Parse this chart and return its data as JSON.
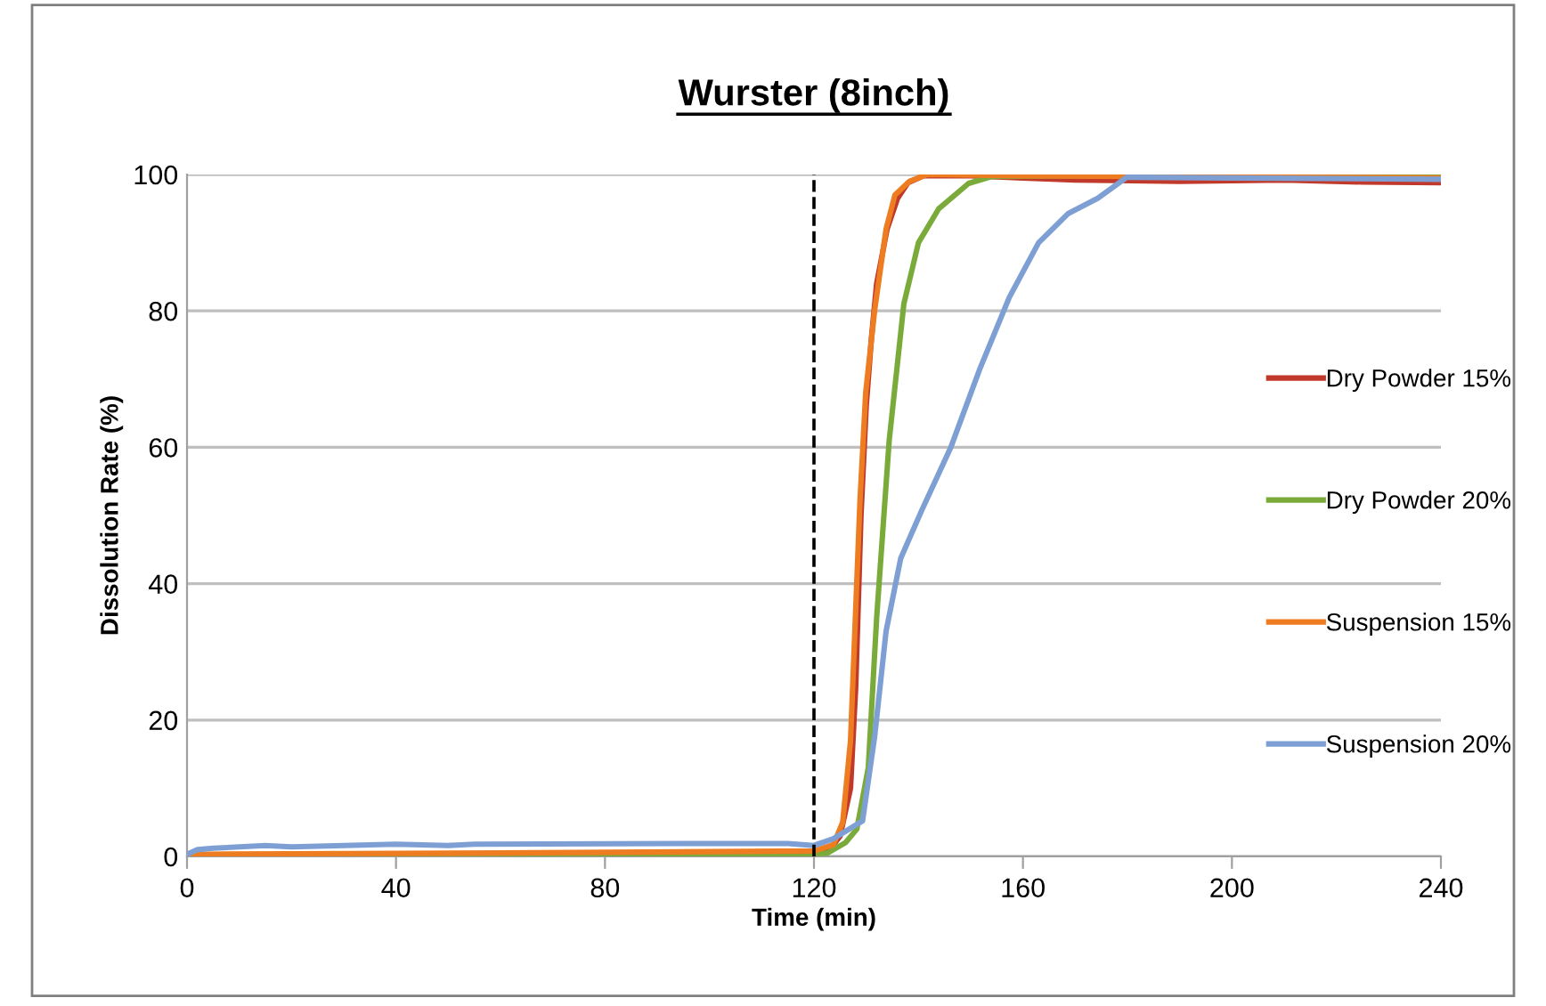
{
  "chart_data": {
    "type": "line",
    "title": "Wurster (8inch)",
    "xlabel": "Time (min)",
    "ylabel": "Dissolution Rate (%)",
    "xlim": [
      0,
      240
    ],
    "xticks": [
      0,
      40,
      80,
      120,
      160,
      200,
      240
    ],
    "ylim": [
      0,
      100
    ],
    "yticks": [
      0,
      20,
      40,
      60,
      80,
      100
    ],
    "grid": "y",
    "legend": "right",
    "marker": "none",
    "line_style": "solid",
    "ref_lines": [
      {
        "axis": "x",
        "value": 120,
        "label": null,
        "color": "#000000",
        "line_style": "dashed"
      }
    ],
    "series": [
      {
        "name": "Dry Powder 15%",
        "color": "#c0392b",
        "x": [
          0,
          20,
          60,
          100,
          120,
          123,
          125,
          127,
          128,
          129,
          130,
          131,
          132,
          134,
          136,
          138,
          141,
          150,
          160,
          170,
          190,
          210,
          225,
          240
        ],
        "values": [
          0.1,
          0.2,
          0.3,
          0.5,
          0.6,
          1,
          3,
          10,
          25,
          50,
          66,
          76,
          84,
          92,
          96.5,
          98.8,
          99.8,
          99.8,
          99.5,
          99.2,
          99,
          99.2,
          98.9,
          98.8
        ]
      },
      {
        "name": "Dry Powder 20%",
        "color": "#7aab3a",
        "x": [
          0,
          20,
          60,
          100,
          120,
          122.6,
          126,
          128.2,
          130.4,
          132,
          134.4,
          137.2,
          140,
          143.9,
          149.6,
          154,
          170,
          200,
          240
        ],
        "values": [
          0,
          0.1,
          0.2,
          0.3,
          0.4,
          0.5,
          2,
          4,
          13,
          35,
          61,
          81,
          90,
          95,
          98.7,
          99.7,
          99.8,
          99.7,
          99.6
        ]
      },
      {
        "name": "Suspension 15%",
        "color": "#ee7d22",
        "x": [
          0,
          20,
          60,
          100,
          120,
          123.7,
          125.5,
          127,
          128.8,
          129.9,
          131.6,
          133.8,
          135.5,
          138.3,
          141.7,
          160,
          180,
          210,
          240
        ],
        "values": [
          0.3,
          0.4,
          0.5,
          0.7,
          0.8,
          1.7,
          5,
          17,
          52,
          68,
          80,
          92,
          97,
          99,
          100,
          99.8,
          99.7,
          99.6,
          99.5
        ]
      },
      {
        "name": "Suspension 20%",
        "color": "#7e9fd4",
        "x": [
          0,
          2,
          5,
          15,
          20,
          40,
          50,
          55,
          100,
          115,
          120,
          123.7,
          129.3,
          131.6,
          133.8,
          136.6,
          140.6,
          146.2,
          151.8,
          157.4,
          163,
          168.7,
          174.3,
          179.9,
          200,
          240
        ],
        "values": [
          0.3,
          1,
          1.2,
          1.6,
          1.4,
          1.8,
          1.6,
          1.8,
          1.9,
          1.9,
          1.6,
          2.6,
          5.2,
          17.5,
          33,
          43.7,
          50.7,
          60,
          71.6,
          82,
          90,
          94.3,
          96.5,
          99.6,
          99.5,
          99.3
        ]
      }
    ]
  }
}
